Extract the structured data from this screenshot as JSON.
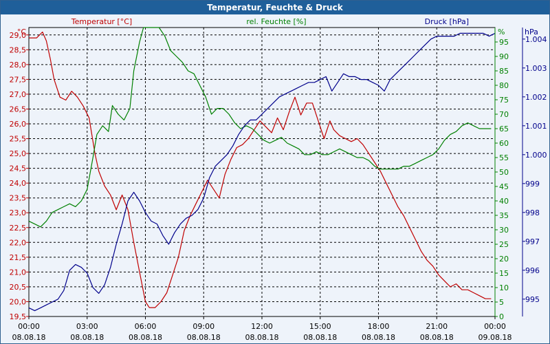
{
  "window": {
    "title": "Temperatur, Feuchte & Druck"
  },
  "colors": {
    "temperature": "#c00000",
    "humidity": "#008000",
    "pressure": "#00008b",
    "grid": "#000000"
  },
  "chart_data": {
    "type": "line",
    "title": "Temperatur, Feuchte & Druck",
    "grid": true,
    "x": {
      "range_hours": [
        0,
        24
      ],
      "ticks": [
        {
          "time": "00:00",
          "date": "08.08.18"
        },
        {
          "time": "03:00",
          "date": "08.08.18"
        },
        {
          "time": "06:00",
          "date": "08.08.18"
        },
        {
          "time": "09:00",
          "date": "08.08.18"
        },
        {
          "time": "12:00",
          "date": "08.08.18"
        },
        {
          "time": "15:00",
          "date": "08.08.18"
        },
        {
          "time": "18:00",
          "date": "08.08.18"
        },
        {
          "time": "21:00",
          "date": "08.08.18"
        },
        {
          "time": "00:00",
          "date": "09.08.18"
        }
      ]
    },
    "axes": {
      "temperature": {
        "unit": "°C",
        "label": "Temperatur [°C]",
        "ylim": [
          19.5,
          29.25
        ],
        "ticks": [
          "29,0",
          "28,5",
          "28,0",
          "27,5",
          "27,0",
          "26,5",
          "26,0",
          "25,5",
          "25,0",
          "24,5",
          "24,0",
          "23,5",
          "23,0",
          "22,5",
          "22,0",
          "21,5",
          "21,0",
          "20,5",
          "20,0",
          "19,5"
        ]
      },
      "humidity": {
        "unit": "%",
        "label": "rel. Feuchte [%]",
        "ylim": [
          0,
          100
        ],
        "ticks": [
          "95",
          "90",
          "85",
          "80",
          "75",
          "70",
          "65",
          "60",
          "55",
          "50",
          "45",
          "40",
          "35",
          "30",
          "25",
          "20",
          "15",
          "10",
          "5",
          "0"
        ]
      },
      "pressure": {
        "unit": "hPa",
        "label": "Druck [hPa]",
        "ylim": [
          994.4,
          1004.4
        ],
        "ticks": [
          "1.004",
          "1.003",
          "1.002",
          "1.001",
          "1.000",
          "999",
          "998",
          "997",
          "996",
          "995"
        ]
      }
    },
    "series": [
      {
        "name": "Temperatur [°C]",
        "axis": "temperature",
        "x": [
          0,
          0.4,
          0.7,
          0.9,
          1.1,
          1.3,
          1.6,
          1.9,
          2.2,
          2.5,
          2.8,
          3.1,
          3.4,
          3.6,
          3.9,
          4.2,
          4.5,
          4.8,
          5.1,
          5.4,
          5.7,
          6,
          6.2,
          6.5,
          6.8,
          7.1,
          7.4,
          7.7,
          8,
          8.3,
          8.6,
          8.9,
          9.2,
          9.5,
          9.8,
          10.1,
          10.4,
          10.7,
          11,
          11.3,
          11.6,
          11.9,
          12.2,
          12.5,
          12.8,
          13.1,
          13.4,
          13.7,
          14,
          14.3,
          14.6,
          14.9,
          15.2,
          15.5,
          15.7,
          16,
          16.3,
          16.6,
          16.9,
          17.2,
          17.5,
          17.8,
          18.1,
          18.4,
          18.7,
          19,
          19.3,
          19.6,
          19.9,
          20.2,
          20.5,
          20.8,
          21.1,
          21.4,
          21.7,
          22,
          22.3,
          22.6,
          22.9,
          23.2,
          23.5,
          23.8
        ],
        "values": [
          28.9,
          28.9,
          29.1,
          28.8,
          28.2,
          27.5,
          26.9,
          26.8,
          27.1,
          26.9,
          26.6,
          26.2,
          25.0,
          24.4,
          23.9,
          23.6,
          23.1,
          23.6,
          23.1,
          22.0,
          21.0,
          20.0,
          19.8,
          19.8,
          20.0,
          20.3,
          20.9,
          21.5,
          22.4,
          22.9,
          23.3,
          23.7,
          24.1,
          23.8,
          23.5,
          24.3,
          24.8,
          25.2,
          25.3,
          25.5,
          25.8,
          26.1,
          25.9,
          25.7,
          26.2,
          25.8,
          26.4,
          26.9,
          26.3,
          26.7,
          26.7,
          26.1,
          25.5,
          26.1,
          25.8,
          25.6,
          25.5,
          25.4,
          25.5,
          25.3,
          25.0,
          24.7,
          24.4,
          24.0,
          23.6,
          23.2,
          22.9,
          22.5,
          22.1,
          21.7,
          21.4,
          21.2,
          20.9,
          20.7,
          20.5,
          20.6,
          20.4,
          20.4,
          20.3,
          20.2,
          20.1,
          20.1
        ]
      },
      {
        "name": "rel. Feuchte [%]",
        "axis": "humidity",
        "x": [
          0,
          0.3,
          0.6,
          0.9,
          1.2,
          1.5,
          1.8,
          2.1,
          2.4,
          2.7,
          3,
          3.3,
          3.5,
          3.8,
          4.1,
          4.3,
          4.6,
          4.9,
          5.2,
          5.4,
          5.7,
          5.9,
          6.1,
          6.4,
          6.7,
          7,
          7.3,
          7.6,
          7.9,
          8.2,
          8.5,
          8.8,
          9.1,
          9.4,
          9.7,
          10,
          10.3,
          10.6,
          10.9,
          11.2,
          11.5,
          11.8,
          12.1,
          12.4,
          12.7,
          13,
          13.3,
          13.6,
          13.9,
          14.2,
          14.5,
          14.8,
          15.1,
          15.4,
          15.7,
          16,
          16.3,
          16.6,
          16.9,
          17.2,
          17.5,
          17.8,
          18.1,
          18.4,
          18.7,
          19,
          19.3,
          19.6,
          19.9,
          20.2,
          20.5,
          20.8,
          21.1,
          21.4,
          21.7,
          22,
          22.3,
          22.6,
          22.9,
          23.2,
          23.5,
          23.8
        ],
        "values": [
          33,
          32,
          31,
          33,
          36,
          37,
          38,
          39,
          38,
          40,
          44,
          55,
          63,
          66,
          64,
          73,
          70,
          68,
          72,
          85,
          95,
          100,
          100,
          100,
          100,
          97,
          92,
          90,
          88,
          85,
          84,
          80,
          76,
          70,
          72,
          72,
          70,
          67,
          65,
          66,
          65,
          63,
          61,
          60,
          61,
          62,
          60,
          59,
          58,
          56,
          56,
          57,
          56,
          56,
          57,
          58,
          57,
          56,
          55,
          55,
          54,
          52,
          51,
          51,
          51,
          51,
          52,
          52,
          53,
          54,
          55,
          56,
          58,
          61,
          63,
          64,
          66,
          67,
          66,
          65,
          65,
          65
        ]
      },
      {
        "name": "Druck [hPa]",
        "axis": "pressure",
        "x": [
          0,
          0.3,
          0.6,
          0.9,
          1.2,
          1.5,
          1.8,
          2.1,
          2.4,
          2.7,
          3,
          3.3,
          3.6,
          3.9,
          4.2,
          4.5,
          4.8,
          5.1,
          5.4,
          5.7,
          6,
          6.3,
          6.6,
          6.9,
          7.2,
          7.5,
          7.8,
          8.1,
          8.4,
          8.7,
          9,
          9.3,
          9.6,
          9.9,
          10.2,
          10.5,
          10.8,
          11.1,
          11.4,
          11.7,
          12,
          12.3,
          12.6,
          12.9,
          13.2,
          13.5,
          13.8,
          14.1,
          14.4,
          14.7,
          15,
          15.3,
          15.6,
          15.9,
          16.2,
          16.5,
          16.8,
          17.1,
          17.4,
          17.7,
          18,
          18.3,
          18.6,
          18.9,
          19.2,
          19.5,
          19.8,
          20.1,
          20.4,
          20.7,
          21,
          21.3,
          21.6,
          21.9,
          22.2,
          22.5,
          22.8,
          23.1,
          23.4,
          23.7,
          24
        ],
        "values": [
          994.7,
          994.6,
          994.7,
          994.8,
          994.9,
          995.0,
          995.3,
          996.0,
          996.2,
          996.1,
          995.9,
          995.4,
          995.2,
          995.5,
          996.1,
          996.9,
          997.6,
          998.4,
          998.7,
          998.4,
          998.0,
          997.7,
          997.6,
          997.2,
          996.9,
          997.3,
          997.6,
          997.8,
          997.9,
          998.1,
          998.5,
          999.2,
          999.6,
          999.8,
          1000.0,
          1000.3,
          1000.7,
          1001.0,
          1001.2,
          1001.2,
          1001.4,
          1001.6,
          1001.8,
          1002.0,
          1002.1,
          1002.2,
          1002.3,
          1002.4,
          1002.5,
          1002.5,
          1002.6,
          1002.7,
          1002.2,
          1002.5,
          1002.8,
          1002.7,
          1002.7,
          1002.6,
          1002.6,
          1002.5,
          1002.4,
          1002.2,
          1002.6,
          1002.8,
          1003.0,
          1003.2,
          1003.4,
          1003.6,
          1003.8,
          1004.0,
          1004.1,
          1004.1,
          1004.1,
          1004.1,
          1004.2,
          1004.2,
          1004.2,
          1004.2,
          1004.2,
          1004.1,
          1004.2
        ]
      }
    ]
  }
}
